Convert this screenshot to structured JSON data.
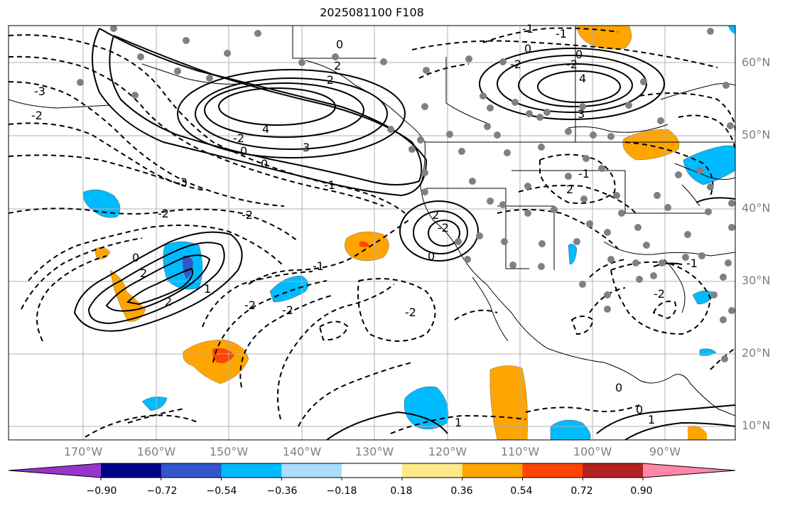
{
  "title": "2025081100 F108",
  "lat_ticks": [
    "60°N",
    "50°N",
    "40°N",
    "30°N",
    "20°N",
    "10°N"
  ],
  "lon_ticks": [
    "170°W",
    "160°W",
    "150°W",
    "140°W",
    "130°W",
    "120°W",
    "110°W",
    "100°W",
    "90°W"
  ],
  "colorbar": {
    "labels": [
      "−0.90",
      "−0.72",
      "−0.54",
      "−0.36",
      "−0.18",
      "0.18",
      "0.36",
      "0.54",
      "0.72",
      "0.90"
    ],
    "colors": [
      "#9933cc",
      "#000088",
      "#3355cc",
      "#00bbff",
      "#aaddff",
      "#ffffff",
      "#ffe88a",
      "#ffa500",
      "#ff4400",
      "#b22222",
      "#ff88aa"
    ]
  },
  "contour_labels": [
    "-3",
    "-2",
    "-3",
    "-2",
    "-2",
    "-2",
    "0",
    "0",
    "-2",
    "2",
    "-1",
    "4",
    "3",
    "0",
    "0",
    "-1",
    "-1",
    "-2",
    "-2",
    "2",
    "-1",
    "0",
    "2",
    "4",
    "3",
    "-2",
    "-2",
    "-2",
    "0",
    "2",
    "2",
    "1",
    "-1",
    "-1",
    "-2",
    "1",
    "0",
    "0",
    "1",
    "-2",
    "0"
  ],
  "colors": {
    "shade_orange": "#ffa500",
    "shade_red": "#ff4400",
    "shade_cyan": "#00bbff",
    "shade_blue": "#3355cc",
    "station_dot": "#808080",
    "grid": "#b0b0b0"
  }
}
